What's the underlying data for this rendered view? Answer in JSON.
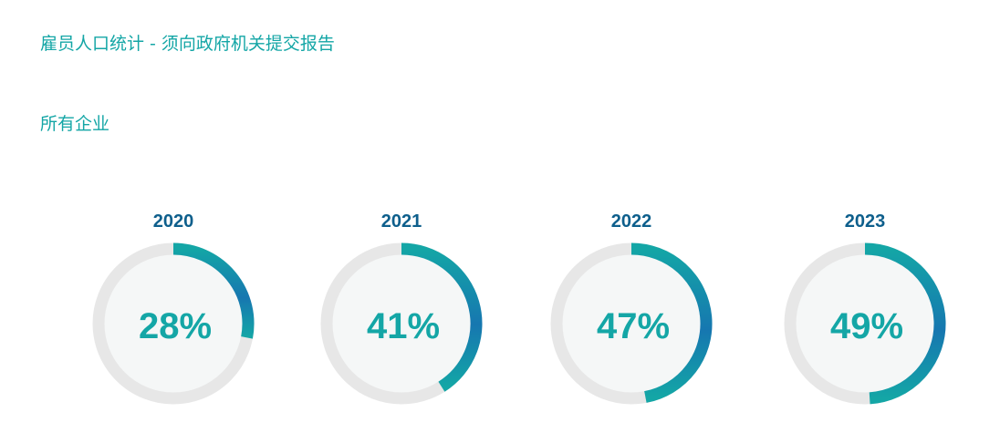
{
  "header": {
    "title": "雇员人口统计 - 须向政府机关提交报告",
    "subtitle": "所有企业"
  },
  "colors": {
    "accent": "#14a6a6",
    "accent_dark": "#0e5f8c",
    "gauge_end": "#1677b0",
    "track": "#e7e7e7",
    "inner": "#f5f7f7"
  },
  "chart_data": {
    "type": "gauge",
    "categories": [
      "2020",
      "2021",
      "2022",
      "2023"
    ],
    "values": [
      28,
      41,
      47,
      49
    ],
    "labels": [
      "28%",
      "41%",
      "47%",
      "49%"
    ],
    "unit": "%",
    "ylim": [
      0,
      100
    ]
  }
}
